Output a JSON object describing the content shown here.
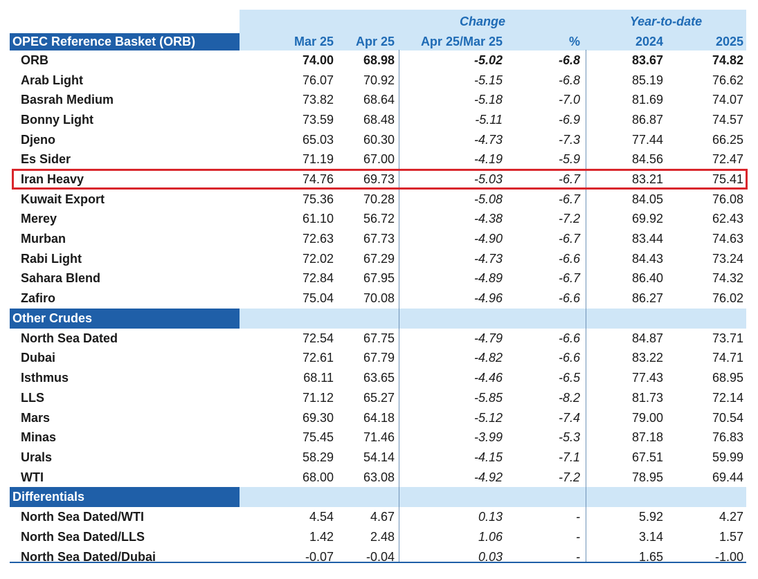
{
  "header": {
    "title": "OPEC Reference Basket (ORB)",
    "change_group": "Change",
    "ytd_group": "Year-to-date",
    "columns": [
      "Mar 25",
      "Apr 25",
      "Apr 25/Mar 25",
      "%",
      "2024",
      "2025"
    ]
  },
  "orb_rows": [
    {
      "name": "ORB",
      "mar25": "74.00",
      "apr25": "68.98",
      "chg": "-5.02",
      "pct": "-6.8",
      "y2024": "83.67",
      "y2025": "74.82"
    },
    {
      "name": "Arab Light",
      "mar25": "76.07",
      "apr25": "70.92",
      "chg": "-5.15",
      "pct": "-6.8",
      "y2024": "85.19",
      "y2025": "76.62"
    },
    {
      "name": "Basrah Medium",
      "mar25": "73.82",
      "apr25": "68.64",
      "chg": "-5.18",
      "pct": "-7.0",
      "y2024": "81.69",
      "y2025": "74.07"
    },
    {
      "name": "Bonny Light",
      "mar25": "73.59",
      "apr25": "68.48",
      "chg": "-5.11",
      "pct": "-6.9",
      "y2024": "86.87",
      "y2025": "74.57"
    },
    {
      "name": "Djeno",
      "mar25": "65.03",
      "apr25": "60.30",
      "chg": "-4.73",
      "pct": "-7.3",
      "y2024": "77.44",
      "y2025": "66.25"
    },
    {
      "name": "Es Sider",
      "mar25": "71.19",
      "apr25": "67.00",
      "chg": "-4.19",
      "pct": "-5.9",
      "y2024": "84.56",
      "y2025": "72.47"
    },
    {
      "name": "Iran Heavy",
      "mar25": "74.76",
      "apr25": "69.73",
      "chg": "-5.03",
      "pct": "-6.7",
      "y2024": "83.21",
      "y2025": "75.41"
    },
    {
      "name": "Kuwait Export",
      "mar25": "75.36",
      "apr25": "70.28",
      "chg": "-5.08",
      "pct": "-6.7",
      "y2024": "84.05",
      "y2025": "76.08"
    },
    {
      "name": "Merey",
      "mar25": "61.10",
      "apr25": "56.72",
      "chg": "-4.38",
      "pct": "-7.2",
      "y2024": "69.92",
      "y2025": "62.43"
    },
    {
      "name": "Murban",
      "mar25": "72.63",
      "apr25": "67.73",
      "chg": "-4.90",
      "pct": "-6.7",
      "y2024": "83.44",
      "y2025": "74.63"
    },
    {
      "name": "Rabi Light",
      "mar25": "72.02",
      "apr25": "67.29",
      "chg": "-4.73",
      "pct": "-6.6",
      "y2024": "84.43",
      "y2025": "73.24"
    },
    {
      "name": "Sahara Blend",
      "mar25": "72.84",
      "apr25": "67.95",
      "chg": "-4.89",
      "pct": "-6.7",
      "y2024": "86.40",
      "y2025": "74.32"
    },
    {
      "name": "Zafiro",
      "mar25": "75.04",
      "apr25": "70.08",
      "chg": "-4.96",
      "pct": "-6.6",
      "y2024": "86.27",
      "y2025": "76.02"
    }
  ],
  "other_crudes": {
    "label": "Other Crudes",
    "rows": [
      {
        "name": "North Sea Dated",
        "mar25": "72.54",
        "apr25": "67.75",
        "chg": "-4.79",
        "pct": "-6.6",
        "y2024": "84.87",
        "y2025": "73.71"
      },
      {
        "name": "Dubai",
        "mar25": "72.61",
        "apr25": "67.79",
        "chg": "-4.82",
        "pct": "-6.6",
        "y2024": "83.22",
        "y2025": "74.71"
      },
      {
        "name": "Isthmus",
        "mar25": "68.11",
        "apr25": "63.65",
        "chg": "-4.46",
        "pct": "-6.5",
        "y2024": "77.43",
        "y2025": "68.95"
      },
      {
        "name": "LLS",
        "mar25": "71.12",
        "apr25": "65.27",
        "chg": "-5.85",
        "pct": "-8.2",
        "y2024": "81.73",
        "y2025": "72.14"
      },
      {
        "name": "Mars",
        "mar25": "69.30",
        "apr25": "64.18",
        "chg": "-5.12",
        "pct": "-7.4",
        "y2024": "79.00",
        "y2025": "70.54"
      },
      {
        "name": "Minas",
        "mar25": "75.45",
        "apr25": "71.46",
        "chg": "-3.99",
        "pct": "-5.3",
        "y2024": "87.18",
        "y2025": "76.83"
      },
      {
        "name": "Urals",
        "mar25": "58.29",
        "apr25": "54.14",
        "chg": "-4.15",
        "pct": "-7.1",
        "y2024": "67.51",
        "y2025": "59.99"
      },
      {
        "name": "WTI",
        "mar25": "68.00",
        "apr25": "63.08",
        "chg": "-4.92",
        "pct": "-7.2",
        "y2024": "78.95",
        "y2025": "69.44"
      }
    ]
  },
  "differentials": {
    "label": "Differentials",
    "rows": [
      {
        "name": "North Sea Dated/WTI",
        "mar25": "4.54",
        "apr25": "4.67",
        "chg": "0.13",
        "pct": "-",
        "y2024": "5.92",
        "y2025": "4.27"
      },
      {
        "name": "North Sea Dated/LLS",
        "mar25": "1.42",
        "apr25": "2.48",
        "chg": "1.06",
        "pct": "-",
        "y2024": "3.14",
        "y2025": "1.57"
      },
      {
        "name": "North Sea Dated/Dubai",
        "mar25": "-0.07",
        "apr25": "-0.04",
        "chg": "0.03",
        "pct": "-",
        "y2024": "1.65",
        "y2025": "-1.00"
      }
    ]
  },
  "highlight": {
    "row": "Iran Heavy",
    "color": "#d9262c"
  },
  "colors": {
    "header_dark": "#1f5fa8",
    "header_light": "#cfe6f7",
    "header_text": "#1f6bb5"
  }
}
